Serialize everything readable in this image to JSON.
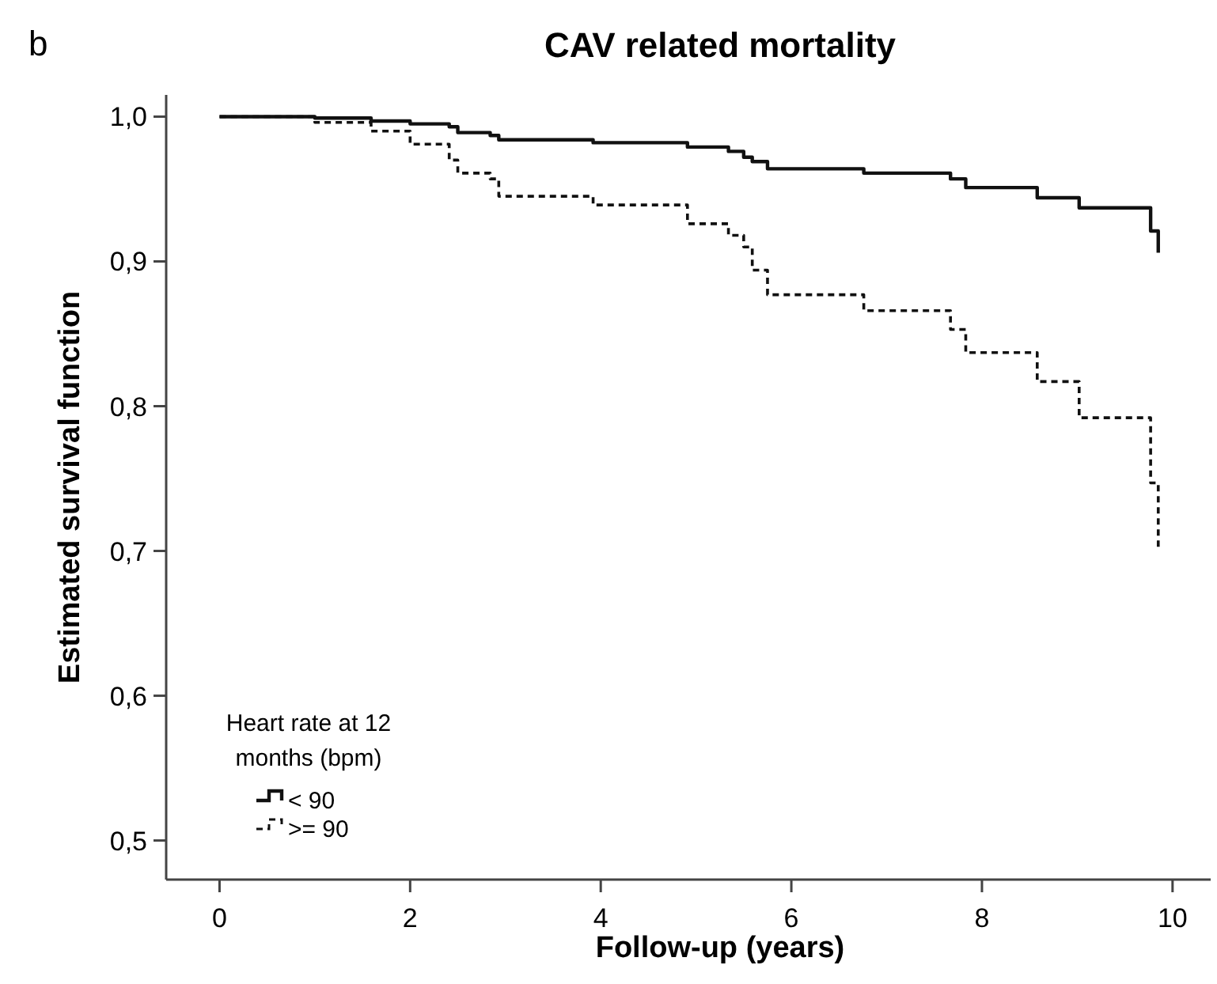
{
  "chart_data": {
    "type": "step",
    "title": "CAV related mortality",
    "xlabel": "Follow-up (years)",
    "ylabel": "Estimated survival function",
    "legend_title": "Heart rate at 12 months (bpm)",
    "annotations": [
      "b"
    ],
    "series": [
      {
        "name": "< 90",
        "color": "#111111",
        "line_style": "solid",
        "x": [
          0,
          1.0,
          1.59,
          2.0,
          2.41,
          2.5,
          2.84,
          2.93,
          3.92,
          4.91,
          5.34,
          5.5,
          5.59,
          5.75,
          6.76,
          7.67,
          7.83,
          8.58,
          9.02,
          9.77,
          9.85
        ],
        "values": [
          1.0,
          0.999,
          0.997,
          0.995,
          0.993,
          0.989,
          0.987,
          0.984,
          0.982,
          0.979,
          0.976,
          0.972,
          0.969,
          0.964,
          0.961,
          0.957,
          0.951,
          0.944,
          0.937,
          0.921,
          0.906
        ]
      },
      {
        "name": ">= 90",
        "color": "#111111",
        "line_style": "dashed",
        "x": [
          0,
          1.0,
          1.59,
          2.0,
          2.41,
          2.5,
          2.84,
          2.93,
          3.92,
          4.91,
          5.34,
          5.5,
          5.59,
          5.75,
          6.76,
          7.67,
          7.83,
          8.58,
          9.02,
          9.77,
          9.85
        ],
        "values": [
          1.0,
          0.996,
          0.99,
          0.981,
          0.97,
          0.961,
          0.957,
          0.945,
          0.939,
          0.926,
          0.918,
          0.91,
          0.894,
          0.877,
          0.866,
          0.853,
          0.837,
          0.817,
          0.792,
          0.747,
          0.702
        ]
      }
    ],
    "xlim": [
      -0.56,
      10.4
    ],
    "ylim": [
      0.473,
      1.015
    ],
    "xticks": [
      0,
      2,
      4,
      6,
      8,
      10
    ],
    "yticks": [
      {
        "value": 0.5,
        "label": "0,5"
      },
      {
        "value": 0.6,
        "label": "0,6"
      },
      {
        "value": 0.7,
        "label": "0,7"
      },
      {
        "value": 0.8,
        "label": "0,8"
      },
      {
        "value": 0.9,
        "label": "0,9"
      },
      {
        "value": 1.0,
        "label": "1,0"
      }
    ],
    "grid": false,
    "legend": "bottom left"
  }
}
